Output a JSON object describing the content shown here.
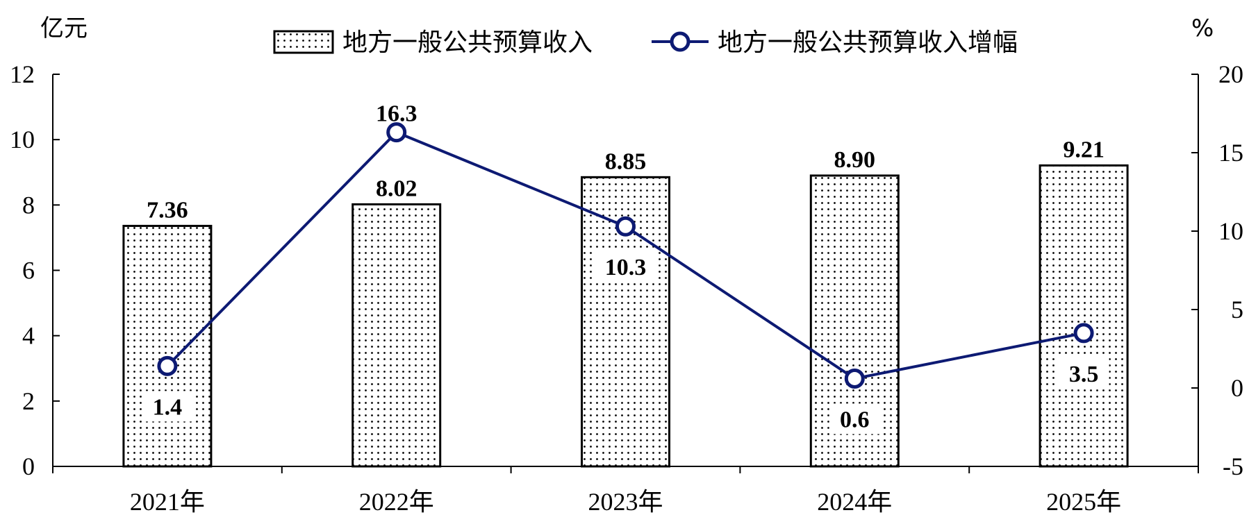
{
  "chart_data": {
    "type": "bar",
    "categories": [
      "2021年",
      "2022年",
      "2023年",
      "2024年",
      "2025年"
    ],
    "left_unit": "亿元",
    "right_unit": "%",
    "ylim": [
      0,
      12
    ],
    "yticks": [
      0,
      2,
      4,
      6,
      8,
      10,
      12
    ],
    "y2lim": [
      -5,
      20
    ],
    "y2ticks": [
      -5,
      0,
      5,
      10,
      15,
      20
    ],
    "legend_placement": "top",
    "grid": false,
    "series": [
      {
        "name": "地方一般公共预算收入",
        "type": "bar",
        "axis": "left",
        "values": [
          7.36,
          8.02,
          8.85,
          8.9,
          9.21
        ],
        "labels": [
          "7.36",
          "8.02",
          "8.85",
          "8.90",
          "9.21"
        ],
        "pattern": "dotted"
      },
      {
        "name": "地方一般公共预算收入增幅",
        "type": "line",
        "axis": "right",
        "values": [
          1.4,
          16.3,
          10.3,
          0.6,
          3.5
        ],
        "labels": [
          "1.4",
          "16.3",
          "10.3",
          "0.6",
          "3.5"
        ],
        "color": "#0d1a73"
      }
    ]
  }
}
